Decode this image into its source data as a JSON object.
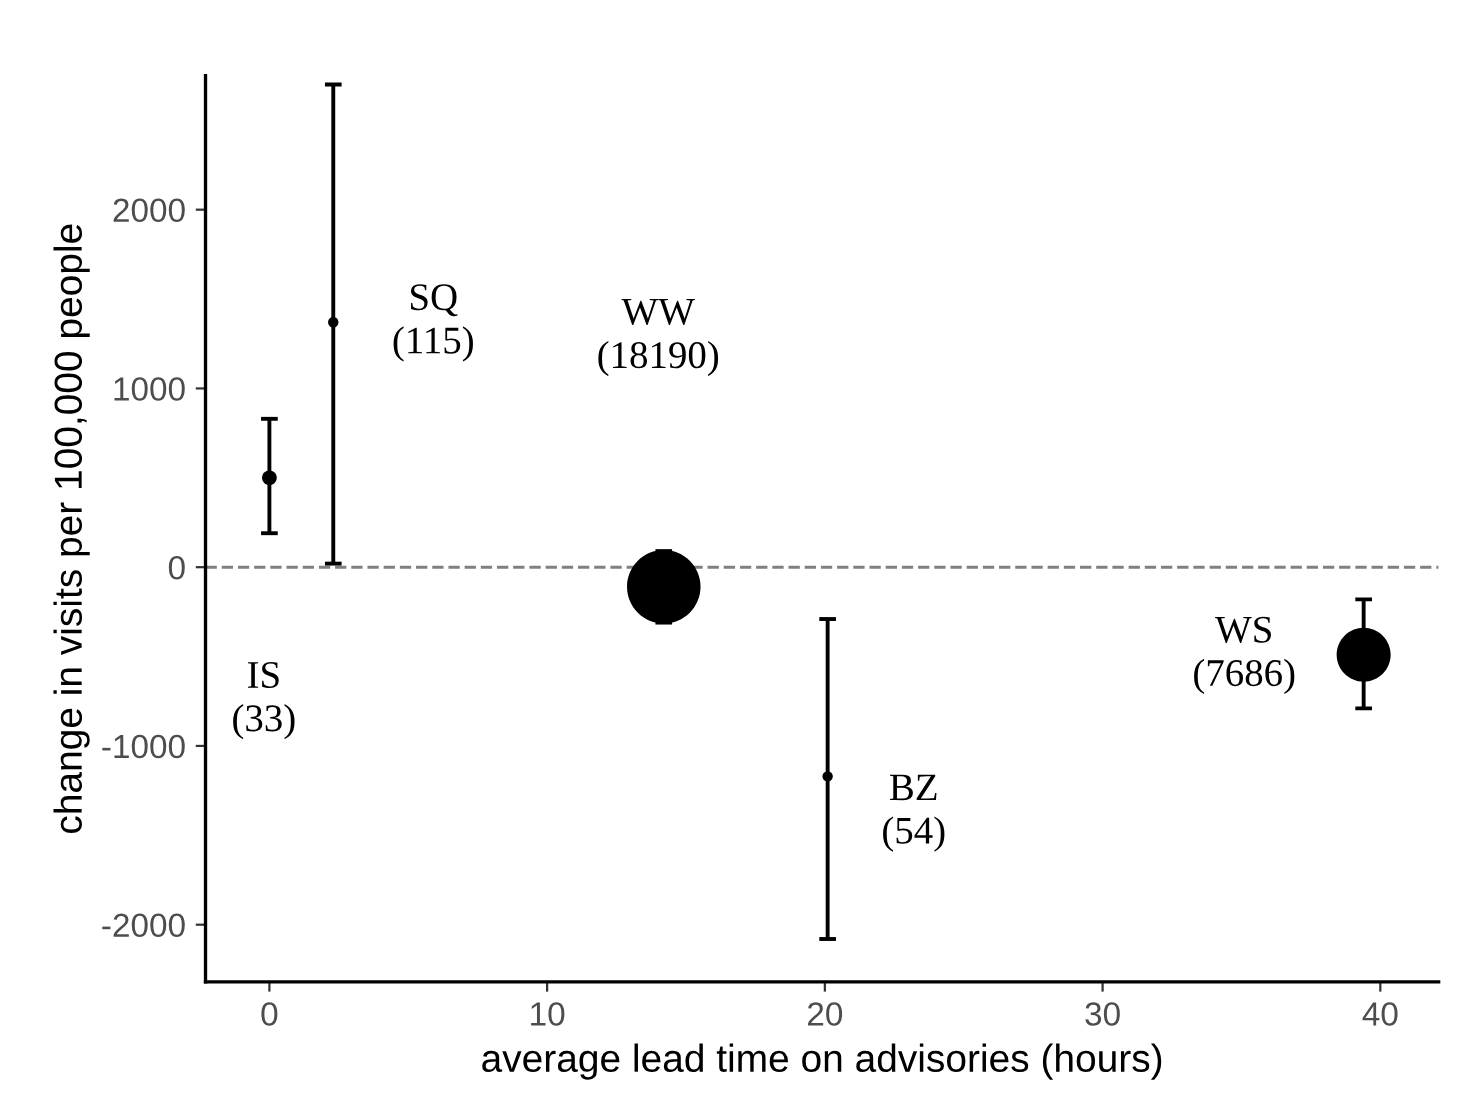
{
  "chart_data": {
    "type": "bubble",
    "xlabel": "average lead time on advisories (hours)",
    "ylabel": "change in visits per 100,000 people",
    "x": [
      0,
      2.3,
      14.2,
      20.1,
      39.4
    ],
    "values": [
      500,
      1370,
      -110,
      -1170,
      -490
    ],
    "sizes": [
      0.04,
      0.02,
      1,
      0.02,
      0.54
    ],
    "errors": [
      [
        190,
        830
      ],
      [
        20,
        2700
      ],
      [
        -310,
        90
      ],
      [
        -2080,
        -290
      ],
      [
        -790,
        -180
      ]
    ],
    "color": "#000000",
    "xlim": [
      -2.3,
      42.1
    ],
    "ylim": [
      -2320,
      2750
    ],
    "xticks": [
      0,
      10,
      20,
      30,
      40
    ],
    "yticks": [
      -2000,
      -1000,
      0,
      1000,
      2000
    ],
    "grid": false,
    "legend": false,
    "ref_lines": [
      {
        "axis": "y",
        "value": 0,
        "color": "#808080",
        "line_style": "dashed"
      }
    ],
    "annotations": [
      "IS\n(33)",
      "SQ\n(115)",
      "WW\n(18190)",
      "BZ\n(54)",
      "WS\n(7686)"
    ]
  }
}
